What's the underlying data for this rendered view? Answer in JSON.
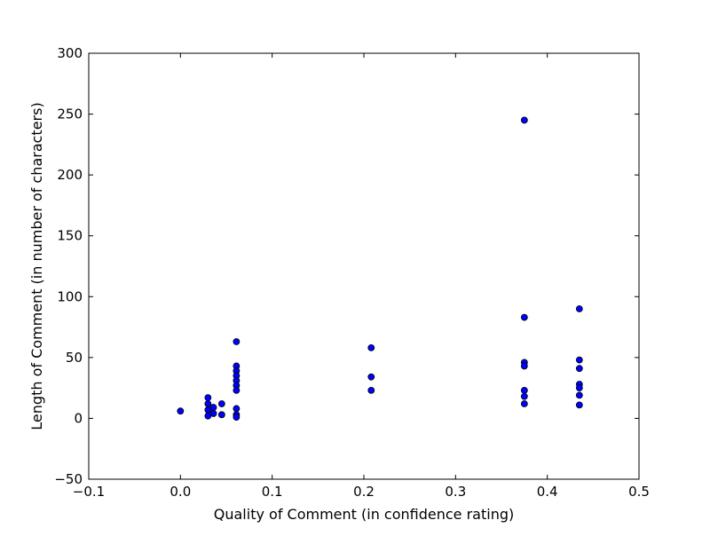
{
  "chart_data": {
    "type": "scatter",
    "title": "",
    "xlabel": "Quality of Comment (in confidence rating)",
    "ylabel": "Length of Comment (in number of characters)",
    "xlim": [
      -0.1,
      0.5
    ],
    "ylim": [
      -50,
      300
    ],
    "x_ticks": [
      -0.1,
      0.0,
      0.1,
      0.2,
      0.3,
      0.4,
      0.5
    ],
    "x_tick_labels": [
      "−0.1",
      "0.0",
      "0.1",
      "0.2",
      "0.3",
      "0.4",
      "0.5"
    ],
    "y_ticks": [
      -50,
      0,
      50,
      100,
      150,
      200,
      250,
      300
    ],
    "y_tick_labels": [
      "−50",
      "0",
      "50",
      "100",
      "150",
      "200",
      "250",
      "300"
    ],
    "grid": false,
    "marker_color": "#0000ff",
    "marker_edge_color": "#000000",
    "points": [
      {
        "x": 0.0,
        "y": 6
      },
      {
        "x": 0.03,
        "y": 17
      },
      {
        "x": 0.03,
        "y": 12
      },
      {
        "x": 0.03,
        "y": 7
      },
      {
        "x": 0.03,
        "y": 2
      },
      {
        "x": 0.036,
        "y": 9
      },
      {
        "x": 0.036,
        "y": 4
      },
      {
        "x": 0.045,
        "y": 12
      },
      {
        "x": 0.045,
        "y": 3
      },
      {
        "x": 0.061,
        "y": 63
      },
      {
        "x": 0.061,
        "y": 43
      },
      {
        "x": 0.061,
        "y": 39
      },
      {
        "x": 0.061,
        "y": 35
      },
      {
        "x": 0.061,
        "y": 31
      },
      {
        "x": 0.061,
        "y": 27
      },
      {
        "x": 0.061,
        "y": 23
      },
      {
        "x": 0.061,
        "y": 8
      },
      {
        "x": 0.061,
        "y": 3
      },
      {
        "x": 0.061,
        "y": 1
      },
      {
        "x": 0.208,
        "y": 58
      },
      {
        "x": 0.208,
        "y": 34
      },
      {
        "x": 0.208,
        "y": 23
      },
      {
        "x": 0.375,
        "y": 245
      },
      {
        "x": 0.375,
        "y": 83
      },
      {
        "x": 0.375,
        "y": 46
      },
      {
        "x": 0.375,
        "y": 43
      },
      {
        "x": 0.375,
        "y": 23
      },
      {
        "x": 0.375,
        "y": 18
      },
      {
        "x": 0.375,
        "y": 12
      },
      {
        "x": 0.435,
        "y": 90
      },
      {
        "x": 0.435,
        "y": 48
      },
      {
        "x": 0.435,
        "y": 41
      },
      {
        "x": 0.435,
        "y": 28
      },
      {
        "x": 0.435,
        "y": 25
      },
      {
        "x": 0.435,
        "y": 19
      },
      {
        "x": 0.435,
        "y": 11
      }
    ]
  }
}
